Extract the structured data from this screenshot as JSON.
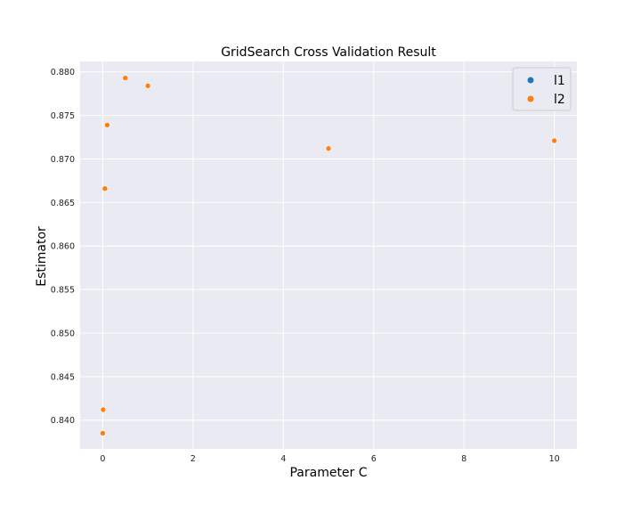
{
  "chart_data": {
    "type": "scatter",
    "title": "GridSearch Cross Validation Result",
    "xlabel": "Parameter C",
    "ylabel": "Estimator",
    "xlim": [
      -0.5,
      10.5
    ],
    "ylim": [
      0.8367,
      0.8812
    ],
    "xticks": [
      0,
      2,
      4,
      6,
      8,
      10
    ],
    "xtick_labels": [
      "0",
      "2",
      "4",
      "6",
      "8",
      "10"
    ],
    "yticks": [
      0.84,
      0.845,
      0.85,
      0.855,
      0.86,
      0.865,
      0.87,
      0.875,
      0.88
    ],
    "ytick_labels": [
      "0.840",
      "0.845",
      "0.850",
      "0.855",
      "0.860",
      "0.865",
      "0.870",
      "0.875",
      "0.880"
    ],
    "grid": true,
    "legend_position": "top-right",
    "series": [
      {
        "name": "l1",
        "color": "#1f77b4",
        "points": []
      },
      {
        "name": "l2",
        "color": "#ff7f0e",
        "points": [
          {
            "x": 0.001,
            "y": 0.8385
          },
          {
            "x": 0.01,
            "y": 0.8412
          },
          {
            "x": 0.05,
            "y": 0.8666
          },
          {
            "x": 0.1,
            "y": 0.8739
          },
          {
            "x": 0.5,
            "y": 0.8793
          },
          {
            "x": 1,
            "y": 0.8784
          },
          {
            "x": 5,
            "y": 0.8712
          },
          {
            "x": 10,
            "y": 0.8721
          }
        ]
      }
    ]
  }
}
